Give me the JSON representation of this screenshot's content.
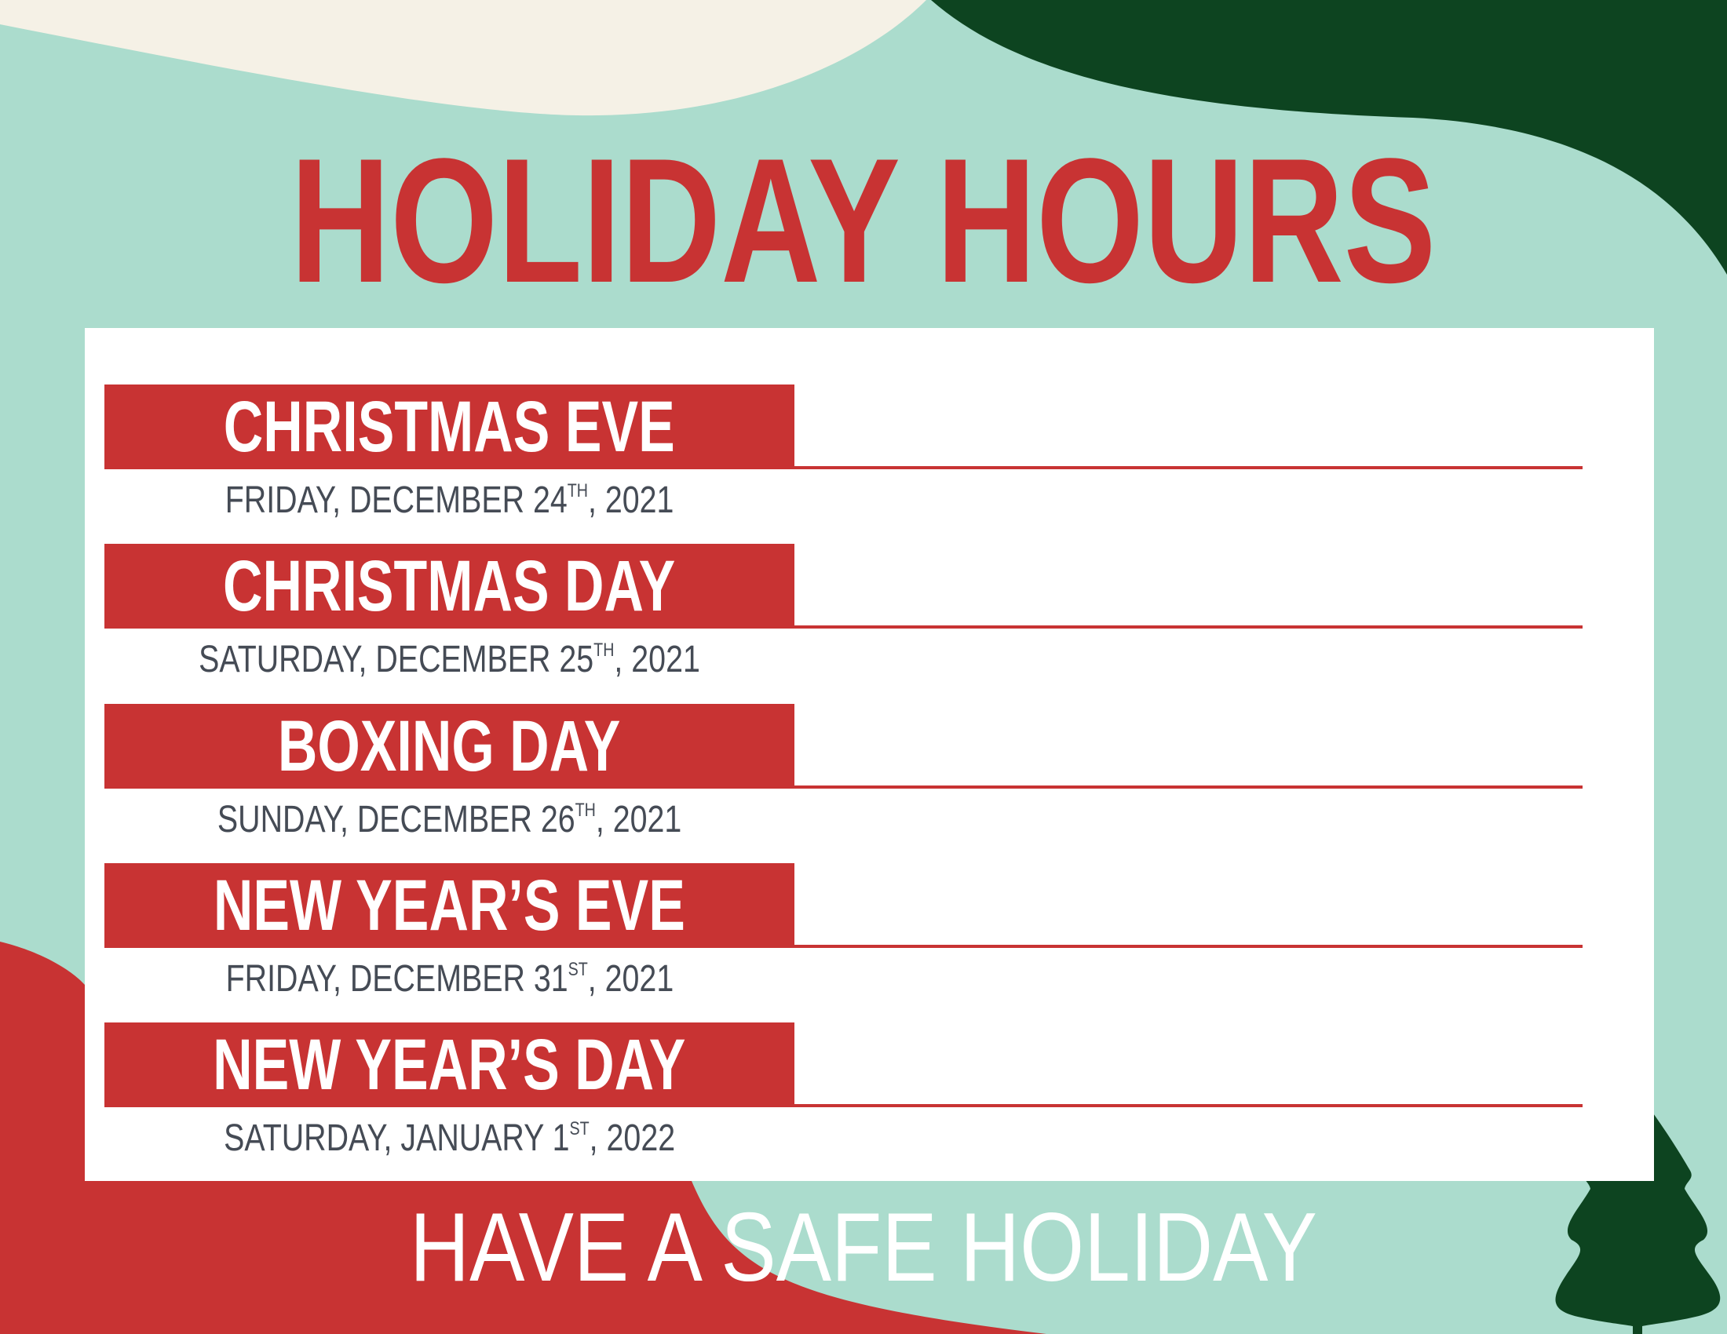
{
  "colors": {
    "mint": "#abdccd",
    "cream": "#f5f1e6",
    "dark_green": "#0d4420",
    "red": "#c83333",
    "text_gray": "#454b55"
  },
  "title": "HOLIDAY HOURS",
  "holidays": [
    {
      "name": "CHRISTMAS EVE",
      "date": "FRIDAY, DECEMBER 24",
      "suffix": "TH",
      "year": ", 2021"
    },
    {
      "name": "CHRISTMAS DAY",
      "date": "SATURDAY, DECEMBER 25",
      "suffix": "TH",
      "year": ", 2021"
    },
    {
      "name": "BOXING DAY",
      "date": "SUNDAY, DECEMBER 26",
      "suffix": "TH",
      "year": ", 2021"
    },
    {
      "name": "NEW YEAR’S EVE",
      "date": "FRIDAY, DECEMBER 31",
      "suffix": "ST",
      "year": ", 2021"
    },
    {
      "name": "NEW YEAR’S DAY",
      "date": "SATURDAY, JANUARY 1",
      "suffix": "ST",
      "year": ", 2022"
    }
  ],
  "footer": "HAVE A SAFE HOLIDAY",
  "decorations": {
    "tree_icon": "pine-tree-icon"
  }
}
